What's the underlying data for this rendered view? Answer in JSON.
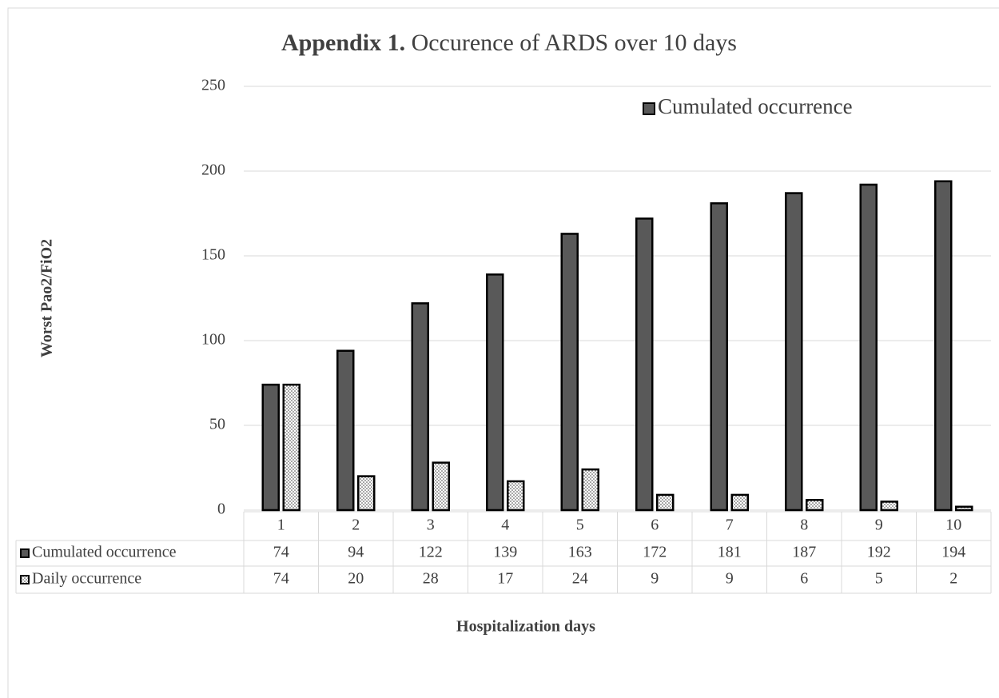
{
  "chart_data": {
    "type": "bar",
    "title_label": "Appendix 1.",
    "title": "Occurence of ARDS over 10 days",
    "y_label": "Worst Pao2/FiO2",
    "x_label": "Hospitalization days",
    "categories": [
      "1",
      "2",
      "3",
      "4",
      "5",
      "6",
      "7",
      "8",
      "9",
      "10"
    ],
    "series": [
      {
        "name": "Cumulated occurrence",
        "color": "#595959",
        "values": [
          74,
          94,
          122,
          139,
          163,
          172,
          181,
          187,
          192,
          194
        ]
      },
      {
        "name": "Daily occurrence",
        "color": "#ffffff",
        "values": [
          74,
          20,
          28,
          17,
          24,
          9,
          9,
          6,
          5,
          2
        ]
      }
    ],
    "ylim": [
      0,
      250
    ],
    "yticks": [
      0,
      50,
      100,
      150,
      200,
      250
    ],
    "grid": true,
    "legend": "top-right",
    "legend_series": [
      0
    ]
  }
}
